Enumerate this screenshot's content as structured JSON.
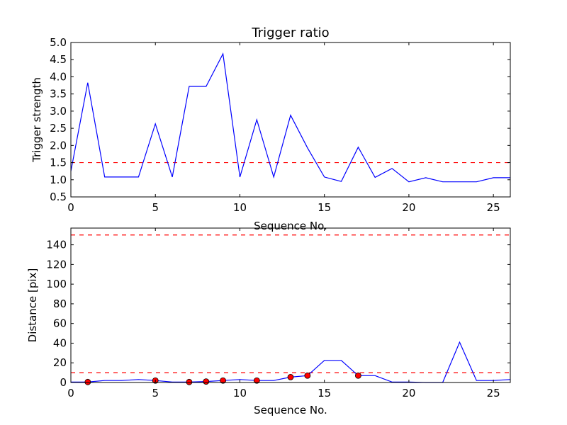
{
  "chart_data": [
    {
      "type": "line",
      "title": "Trigger ratio",
      "xlabel": "Sequence No.",
      "ylabel": "Trigger strength",
      "xlim": [
        0,
        26
      ],
      "ylim": [
        0.5,
        5.0
      ],
      "xticks": [
        0,
        5,
        10,
        15,
        20,
        25
      ],
      "yticks": [
        0.5,
        1.0,
        1.5,
        2.0,
        2.5,
        3.0,
        3.5,
        4.0,
        4.5,
        5.0
      ],
      "ytick_labels": [
        "0.5",
        "1.0",
        "1.5",
        "2.0",
        "2.5",
        "3.0",
        "3.5",
        "4.0",
        "4.5",
        "5.0"
      ],
      "grid": false,
      "series": [
        {
          "color": "#0000ff",
          "x": [
            0,
            1,
            2,
            3,
            4,
            5,
            6,
            7,
            8,
            9,
            10,
            11,
            12,
            13,
            14,
            15,
            16,
            17,
            18,
            19,
            20,
            21,
            22,
            23,
            24,
            25,
            26
          ],
          "values": [
            1.25,
            3.83,
            1.08,
            1.08,
            1.08,
            2.63,
            1.08,
            3.72,
            3.72,
            4.67,
            1.08,
            2.75,
            1.08,
            2.88,
            1.93,
            1.08,
            0.95,
            1.95,
            1.07,
            1.33,
            0.94,
            1.06,
            0.94,
            0.94,
            0.94,
            1.06,
            1.06
          ]
        }
      ],
      "thresholds": [
        {
          "value": 1.5,
          "color": "#ff0000",
          "style": "dashed"
        }
      ]
    },
    {
      "type": "line",
      "title": "",
      "xlabel": "Sequence No.",
      "ylabel": "Distance [pix]",
      "xlim": [
        0,
        26
      ],
      "ylim": [
        0,
        157
      ],
      "xticks": [
        0,
        5,
        10,
        15,
        20,
        25
      ],
      "yticks": [
        0,
        20,
        40,
        60,
        80,
        100,
        120,
        140
      ],
      "ytick_labels": [
        "0",
        "20",
        "40",
        "60",
        "80",
        "100",
        "120",
        "140"
      ],
      "grid": false,
      "series": [
        {
          "color": "#0000ff",
          "x": [
            0,
            1,
            2,
            3,
            4,
            5,
            6,
            7,
            8,
            9,
            10,
            11,
            12,
            13,
            14,
            15,
            16,
            17,
            18,
            19,
            20,
            21,
            22,
            23,
            24,
            25,
            26
          ],
          "values": [
            0.5,
            0.5,
            2,
            2,
            3,
            2,
            0.5,
            0.5,
            1,
            2,
            3,
            2,
            2,
            5.5,
            7,
            22.5,
            22.5,
            7,
            7,
            0.5,
            0.5,
            0,
            0,
            41,
            2,
            2,
            3
          ]
        }
      ],
      "markers": {
        "color": "#ff0000",
        "x": [
          1,
          5,
          7,
          8,
          9,
          11,
          13,
          14,
          17
        ],
        "values": [
          0.5,
          2,
          0.5,
          1,
          2,
          2,
          5.5,
          7,
          7
        ]
      },
      "thresholds": [
        {
          "value": 150,
          "color": "#ff0000",
          "style": "dashed"
        },
        {
          "value": 10,
          "color": "#ff0000",
          "style": "dashed"
        }
      ]
    }
  ]
}
